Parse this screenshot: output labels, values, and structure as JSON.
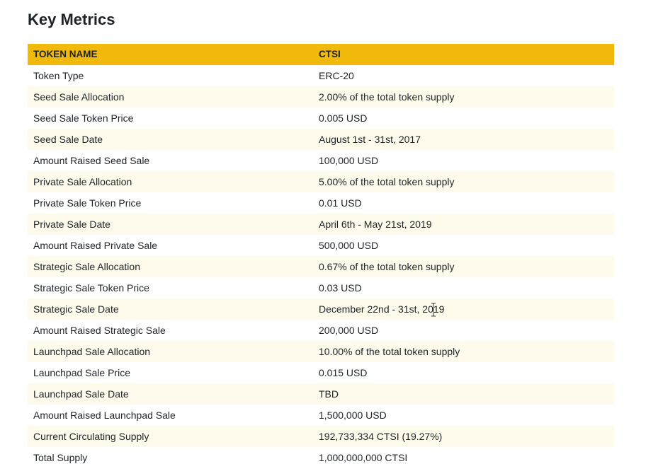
{
  "page": {
    "title": "Key Metrics"
  },
  "table": {
    "headers": {
      "key": "TOKEN NAME",
      "value": "CTSI"
    },
    "rows": [
      {
        "key": "Token Type",
        "value": "ERC-20"
      },
      {
        "key": "Seed Sale Allocation",
        "value": "2.00% of the total token supply"
      },
      {
        "key": "Seed Sale Token Price",
        "value": "0.005 USD"
      },
      {
        "key": "Seed Sale Date",
        "value": "August 1st - 31st, 2017"
      },
      {
        "key": "Amount Raised Seed Sale",
        "value": "100,000 USD"
      },
      {
        "key": "Private Sale Allocation",
        "value": "5.00% of the total token supply"
      },
      {
        "key": "Private Sale Token Price",
        "value": "0.01 USD"
      },
      {
        "key": "Private Sale Date",
        "value": "April 6th - May 21st, 2019"
      },
      {
        "key": "Amount Raised Private Sale",
        "value": "500,000 USD"
      },
      {
        "key": "Strategic Sale Allocation",
        "value": "0.67% of the total token supply"
      },
      {
        "key": "Strategic Sale Token Price",
        "value": "0.03 USD"
      },
      {
        "key": "Strategic Sale Date",
        "value": "December 22nd - 31st, 2019"
      },
      {
        "key": "Amount Raised Strategic Sale",
        "value": "200,000 USD"
      },
      {
        "key": "Launchpad Sale Allocation",
        "value": "10.00% of the total token supply"
      },
      {
        "key": "Launchpad Sale Price",
        "value": "0.015 USD"
      },
      {
        "key": "Launchpad Sale Date",
        "value": "TBD"
      },
      {
        "key": "Amount Raised Launchpad Sale",
        "value": "1,500,000 USD"
      },
      {
        "key": "Current Circulating Supply",
        "value": "192,733,334 CTSI (19.27%)"
      },
      {
        "key": "Total Supply",
        "value": "1,000,000,000 CTSI"
      }
    ]
  },
  "colors": {
    "header_bg": "#f0b90b",
    "stripe_bg": "#fefbec",
    "text": "#1e2329"
  },
  "cursor": {
    "icon": "text-cursor-icon"
  }
}
